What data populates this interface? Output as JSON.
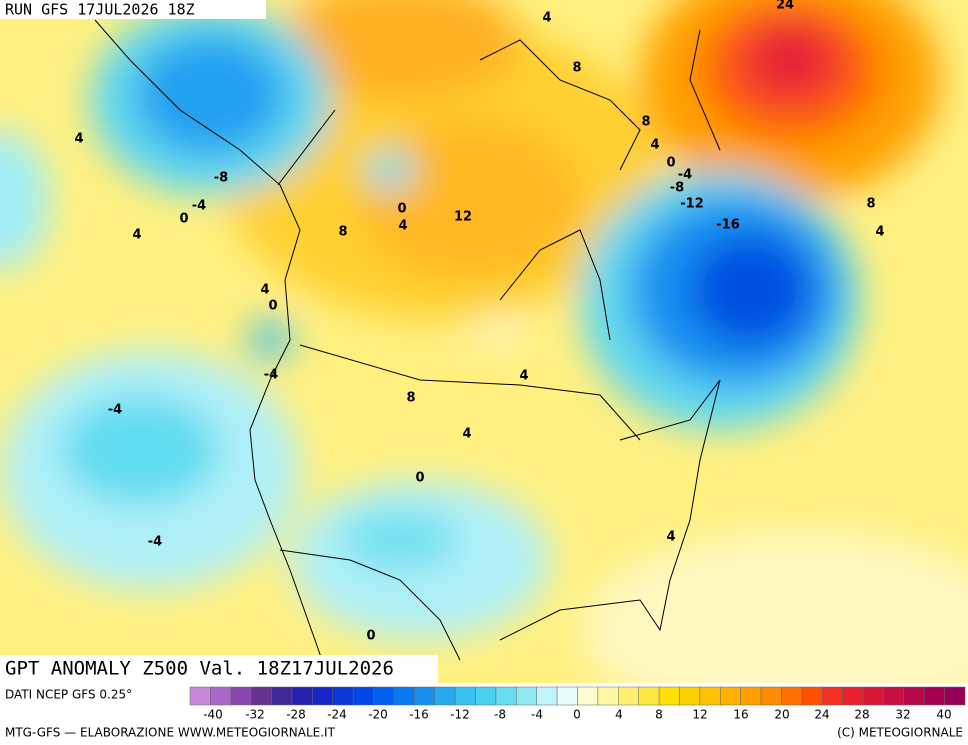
{
  "header": {
    "run": "RUN GFS 17JUL2026 18Z"
  },
  "map": {
    "contour_labels": [
      4,
      24,
      8,
      4,
      8,
      4,
      0,
      -4,
      -8,
      -12,
      -16,
      -8,
      -4,
      0,
      4,
      0,
      4,
      12,
      8,
      8,
      4,
      4,
      0,
      -4,
      4,
      -4,
      8,
      4,
      0,
      -4,
      4,
      0
    ]
  },
  "footer": {
    "title": "GPT ANOMALY Z500 Val. 18Z17JUL2026",
    "source": "DATI NCEP GFS 0.25°",
    "credit": "MTG-GFS — ELABORAZIONE WWW.METEOGIORNALE.IT",
    "copyright": "(C) METEOGIORNALE"
  },
  "legend": {
    "ticks": [
      -40,
      -32,
      -28,
      -24,
      -20,
      -16,
      -12,
      -8,
      -4,
      0,
      4,
      8,
      12,
      16,
      20,
      24,
      28,
      32,
      40
    ],
    "colors": [
      "#c888d8",
      "#a868c8",
      "#8848b0",
      "#683090",
      "#402898",
      "#2820b0",
      "#1828c8",
      "#0838d8",
      "#0048e8",
      "#0060f0",
      "#0878f0",
      "#1890f0",
      "#28a8f0",
      "#38c0f0",
      "#48d0f0",
      "#68dcf0",
      "#90e8f4",
      "#c0f4f8",
      "#e8fcfc",
      "#fffbd0",
      "#fff8a0",
      "#fff070",
      "#ffe840",
      "#ffe000",
      "#ffd000",
      "#ffc000",
      "#ffb000",
      "#ffa000",
      "#ff8c00",
      "#ff7000",
      "#ff5000",
      "#f83020",
      "#e82030",
      "#d81838",
      "#c81040",
      "#b80848",
      "#a80050",
      "#980058"
    ]
  }
}
